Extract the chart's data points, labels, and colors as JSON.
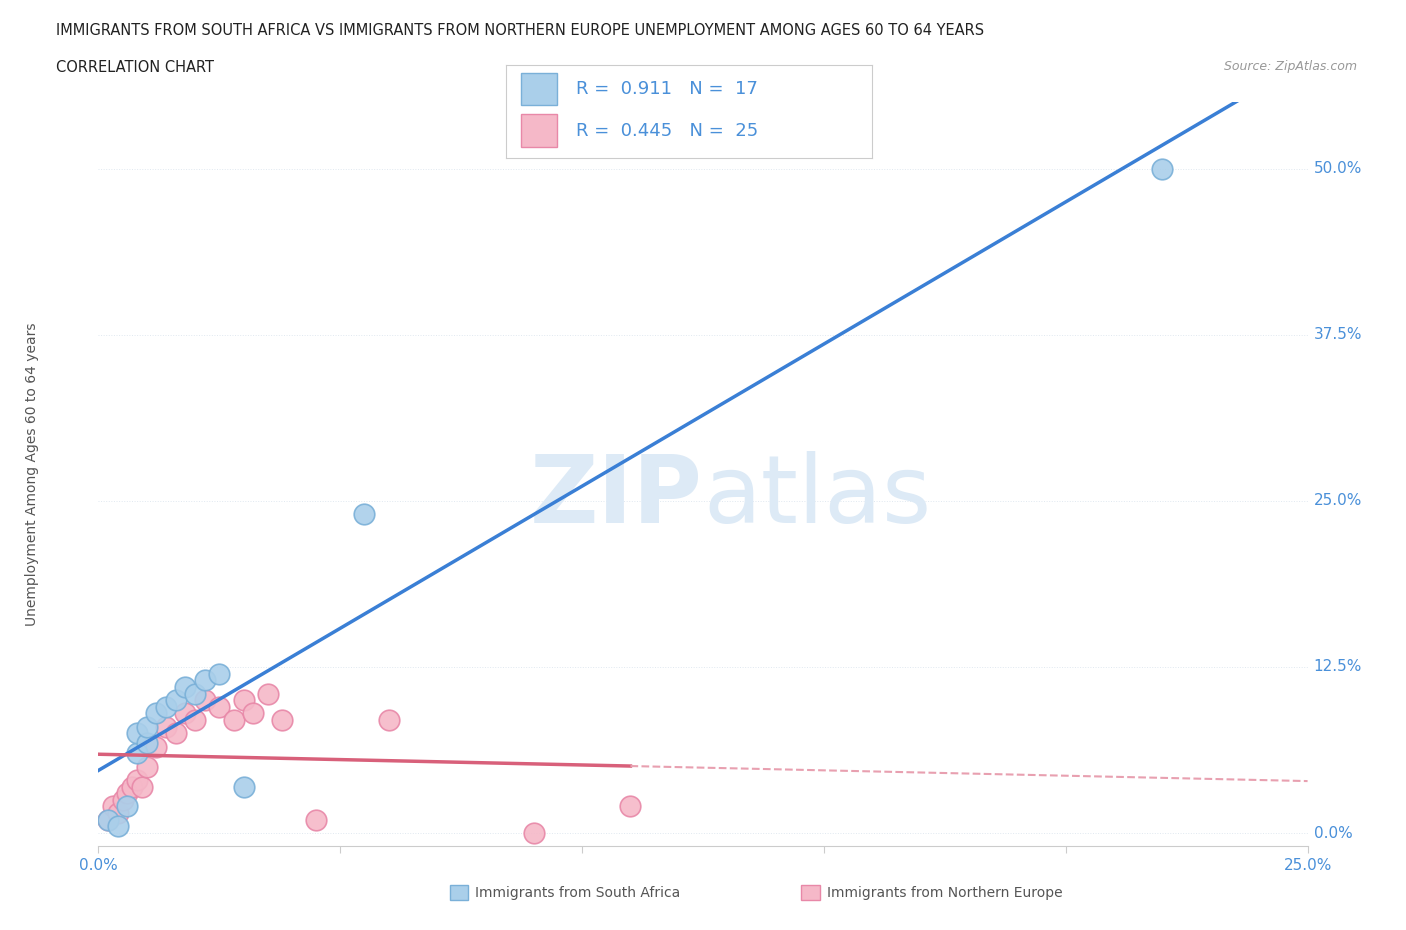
{
  "title_line1": "IMMIGRANTS FROM SOUTH AFRICA VS IMMIGRANTS FROM NORTHERN EUROPE UNEMPLOYMENT AMONG AGES 60 TO 64 YEARS",
  "title_line2": "CORRELATION CHART",
  "source_text": "Source: ZipAtlas.com",
  "ylabel": "Unemployment Among Ages 60 to 64 years",
  "xlim": [
    0.0,
    0.25
  ],
  "ylim": [
    -0.01,
    0.55
  ],
  "yticks": [
    0.0,
    0.125,
    0.25,
    0.375,
    0.5
  ],
  "ytick_labels": [
    "0.0%",
    "12.5%",
    "25.0%",
    "37.5%",
    "50.0%"
  ],
  "xtick_vals": [
    0.0,
    0.05,
    0.1,
    0.15,
    0.2,
    0.25
  ],
  "xtick_labels": [
    "0.0%",
    "",
    "",
    "",
    "",
    "25.0%"
  ],
  "background_color": "#ffffff",
  "grid_color": "#e0e8f0",
  "watermark_color": "#ddeaf6",
  "south_africa_color": "#aacfea",
  "south_africa_edge": "#7ab0d8",
  "northern_europe_color": "#f5b8c8",
  "northern_europe_edge": "#e888a8",
  "R_sa": 0.911,
  "N_sa": 17,
  "R_ne": 0.445,
  "N_ne": 25,
  "sa_x": [
    0.002,
    0.004,
    0.006,
    0.008,
    0.008,
    0.01,
    0.01,
    0.012,
    0.014,
    0.016,
    0.018,
    0.02,
    0.022,
    0.025,
    0.03,
    0.055,
    0.22
  ],
  "sa_y": [
    0.01,
    0.005,
    0.02,
    0.06,
    0.075,
    0.068,
    0.08,
    0.09,
    0.095,
    0.1,
    0.11,
    0.105,
    0.115,
    0.12,
    0.035,
    0.24,
    0.5
  ],
  "ne_x": [
    0.002,
    0.003,
    0.004,
    0.005,
    0.006,
    0.007,
    0.008,
    0.009,
    0.01,
    0.012,
    0.014,
    0.016,
    0.018,
    0.02,
    0.022,
    0.025,
    0.028,
    0.03,
    0.032,
    0.035,
    0.038,
    0.045,
    0.06,
    0.09,
    0.11
  ],
  "ne_y": [
    0.01,
    0.02,
    0.015,
    0.025,
    0.03,
    0.035,
    0.04,
    0.035,
    0.05,
    0.065,
    0.08,
    0.075,
    0.09,
    0.085,
    0.1,
    0.095,
    0.085,
    0.1,
    0.09,
    0.105,
    0.085,
    0.01,
    0.085,
    0.0,
    0.02
  ],
  "sa_line_color": "#3a7fd5",
  "ne_line_color": "#d8607a",
  "ne_line_dashed_color": "#e8a0b0",
  "axis_color": "#cccccc",
  "tick_color": "#4a90d9",
  "label_color": "#555555",
  "legend_border_color": "#cccccc",
  "legend_val_color": "#4a90d9"
}
